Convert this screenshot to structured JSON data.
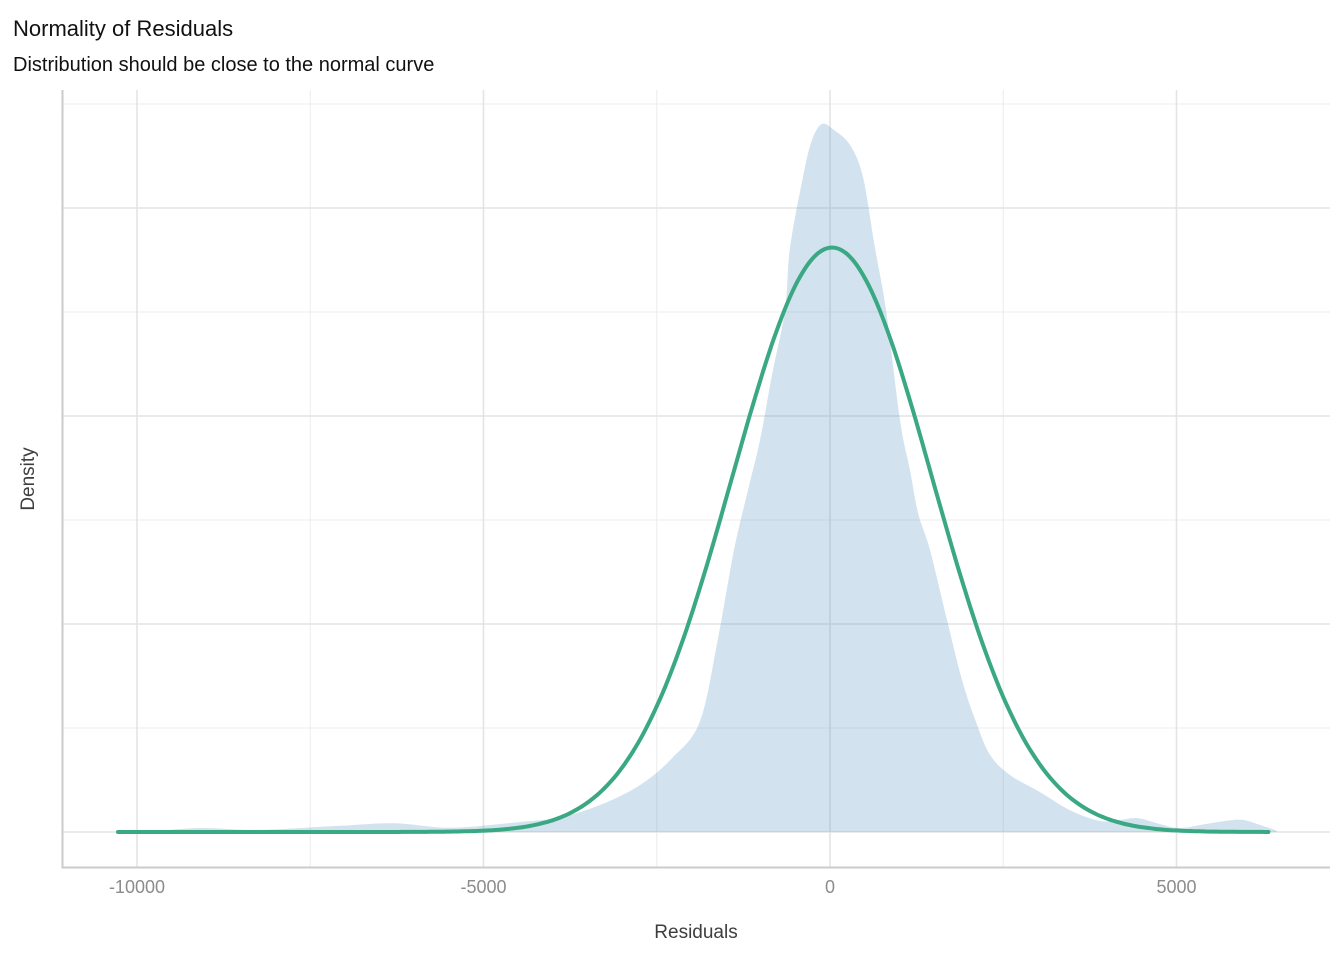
{
  "chart_data": {
    "type": "area",
    "title": "Normality of Residuals",
    "subtitle": "Distribution should be close to the normal curve",
    "xlabel": "Residuals",
    "ylabel": "Density",
    "x_axis": {
      "ticks": [
        {
          "value": -10000,
          "label": "-10000"
        },
        {
          "value": -5000,
          "label": "-5000"
        },
        {
          "value": 0,
          "label": "0"
        },
        {
          "value": 5000,
          "label": "5000"
        }
      ],
      "domain": [
        -11082,
        7215
      ],
      "major_step": 5000,
      "minor_step": 2500
    },
    "y_axis": {
      "domain": [
        0,
        0.000357
      ],
      "major_step": 0.0001,
      "minor_step": 5e-05,
      "tick_labels_shown": false
    },
    "grid": {
      "shown": true,
      "major_color": "#e4e4e4",
      "minor_color": "#ededed",
      "axis_line_color": "#cbcbcb"
    },
    "legend": {
      "shown": false
    },
    "text_colors": {
      "title": "#111111",
      "subtitle": "#111111",
      "axis_title": "#3e3e3e",
      "tick_label": "#8c8c8c"
    },
    "series": [
      {
        "name": "residuals-kde-density",
        "type": "area",
        "fill": "#4b8fbf",
        "fill_opacity": 0.25,
        "points": [
          [
            -9790,
            2e-07
          ],
          [
            -9090,
            1.9e-06
          ],
          [
            -8230,
            1e-06
          ],
          [
            -7070,
            3e-06
          ],
          [
            -6280,
            4.2e-06
          ],
          [
            -5480,
            2e-06
          ],
          [
            -4470,
            4.8e-06
          ],
          [
            -3900,
            7e-06
          ],
          [
            -3320,
            1.3e-05
          ],
          [
            -2740,
            2.26e-05
          ],
          [
            -2280,
            3.55e-05
          ],
          [
            -1880,
            5.29e-05
          ],
          [
            -1620,
            9.23e-05
          ],
          [
            -1385,
            0.0001356
          ],
          [
            -1183,
            0.0001644
          ],
          [
            -1010,
            0.0001884
          ],
          [
            -837,
            0.0002197
          ],
          [
            -649,
            0.000251
          ],
          [
            -577,
            0.0002808
          ],
          [
            -390,
            0.0003149
          ],
          [
            -260,
            0.0003327
          ],
          [
            -115,
            0.0003404
          ],
          [
            58,
            0.0003375
          ],
          [
            289,
            0.0003303
          ],
          [
            476,
            0.0003149
          ],
          [
            649,
            0.0002808
          ],
          [
            808,
            0.000251
          ],
          [
            1010,
            0.000198
          ],
          [
            1154,
            0.000174
          ],
          [
            1270,
            0.0001534
          ],
          [
            1443,
            0.0001356
          ],
          [
            1688,
            0.000102
          ],
          [
            1905,
            7.31e-05
          ],
          [
            2107,
            5.29e-05
          ],
          [
            2309,
            3.71e-05
          ],
          [
            2597,
            2.74e-05
          ],
          [
            3030,
            1.92e-05
          ],
          [
            3463,
            1.05e-05
          ],
          [
            3896,
            5.3e-06
          ],
          [
            4185,
            5.8e-06
          ],
          [
            4444,
            6.7e-06
          ],
          [
            4762,
            3.8e-06
          ],
          [
            5051,
            1.9e-06
          ],
          [
            5412,
            3.8e-06
          ],
          [
            5743,
            5.5e-06
          ],
          [
            5960,
            5.8e-06
          ],
          [
            6205,
            3.4e-06
          ],
          [
            6436,
            7e-07
          ]
        ]
      },
      {
        "name": "reference-normal-curve",
        "type": "line",
        "color": "#3aa882",
        "width": 4,
        "mean": 30,
        "sd": 1443,
        "peak_density": 0.000281,
        "x_start": -10274,
        "x_end": 6393
      }
    ]
  }
}
